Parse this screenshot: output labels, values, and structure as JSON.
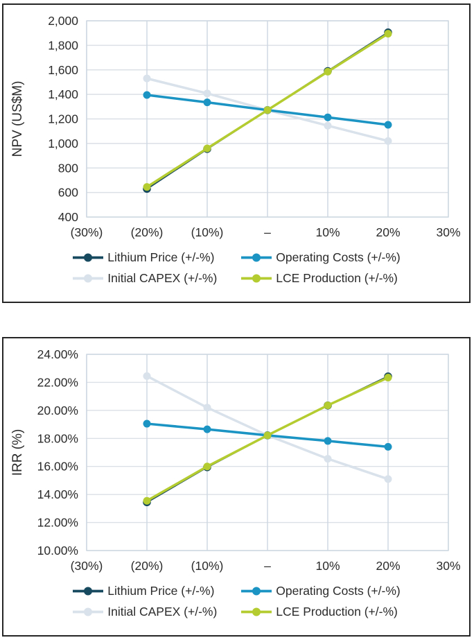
{
  "colors": {
    "lithium": "#17495f",
    "opex": "#1b94c4",
    "capex": "#d9e1ea",
    "lce": "#b5cc31",
    "grid_horizontal": "#dbe0e6",
    "grid_vertical": "#cdd6e1",
    "axis_text": "#2b2b2b",
    "panel_border": "#262626"
  },
  "legend": {
    "items": [
      {
        "label": "Lithium Price (+/-%)",
        "color_key": "lithium",
        "slug": "lithium-price"
      },
      {
        "label": "Operating Costs (+/-%)",
        "color_key": "opex",
        "slug": "operating-costs"
      },
      {
        "label": "Initial CAPEX (+/-%)",
        "color_key": "capex",
        "slug": "initial-capex"
      },
      {
        "label": "LCE Production (+/-%)",
        "color_key": "lce",
        "slug": "lce-production"
      }
    ]
  },
  "chart_data": [
    {
      "type": "line",
      "title": "",
      "xlabel": "",
      "ylabel": "NPV (US$M)",
      "ylim": [
        400,
        2000
      ],
      "grid": true,
      "legend_position": "bottom",
      "yticks": [
        {
          "label": "2,000",
          "value": 2000
        },
        {
          "label": "1,800",
          "value": 1800
        },
        {
          "label": "1,600",
          "value": 1600
        },
        {
          "label": "1,400",
          "value": 1400
        },
        {
          "label": "1,200",
          "value": 1200
        },
        {
          "label": "1,000",
          "value": 1000
        },
        {
          "label": "800",
          "value": 800
        },
        {
          "label": "600",
          "value": 600
        },
        {
          "label": "400",
          "value": 400
        }
      ],
      "xticks": [
        {
          "label": "(30%)",
          "value": -30
        },
        {
          "label": "(20%)",
          "value": -20
        },
        {
          "label": "(10%)",
          "value": -10
        },
        {
          "label": "–",
          "value": 0
        },
        {
          "label": "10%",
          "value": 10
        },
        {
          "label": "20%",
          "value": 20
        },
        {
          "label": "30%",
          "value": 30
        }
      ],
      "x": [
        -20,
        -10,
        0,
        10,
        20
      ],
      "series": [
        {
          "name": "Lithium Price (+/-%)",
          "color_key": "lithium",
          "values": [
            630,
            955,
            1272,
            1590,
            1905
          ]
        },
        {
          "name": "Operating Costs (+/-%)",
          "color_key": "opex",
          "values": [
            1395,
            1335,
            1272,
            1213,
            1152
          ]
        },
        {
          "name": "Initial CAPEX (+/-%)",
          "color_key": "capex",
          "values": [
            1530,
            1408,
            1272,
            1145,
            1020
          ]
        },
        {
          "name": "LCE Production (+/-%)",
          "color_key": "lce",
          "values": [
            645,
            960,
            1272,
            1585,
            1895
          ]
        }
      ]
    },
    {
      "type": "line",
      "title": "",
      "xlabel": "",
      "ylabel": "IRR (%)",
      "ylim": [
        10,
        24
      ],
      "grid": true,
      "legend_position": "bottom",
      "yticks": [
        {
          "label": "24.00%",
          "value": 24
        },
        {
          "label": "22.00%",
          "value": 22
        },
        {
          "label": "20.00%",
          "value": 20
        },
        {
          "label": "18.00%",
          "value": 18
        },
        {
          "label": "16.00%",
          "value": 16
        },
        {
          "label": "14.00%",
          "value": 14
        },
        {
          "label": "12.00%",
          "value": 12
        },
        {
          "label": "10.00%",
          "value": 10
        }
      ],
      "xticks": [
        {
          "label": "(30%)",
          "value": -30
        },
        {
          "label": "(20%)",
          "value": -20
        },
        {
          "label": "(10%)",
          "value": -10
        },
        {
          "label": "–",
          "value": 0
        },
        {
          "label": "10%",
          "value": 10
        },
        {
          "label": "20%",
          "value": 20
        },
        {
          "label": "30%",
          "value": 30
        }
      ],
      "x": [
        -20,
        -10,
        0,
        10,
        20
      ],
      "series": [
        {
          "name": "Lithium Price (+/-%)",
          "color_key": "lithium",
          "values": [
            13.45,
            15.95,
            18.22,
            20.35,
            22.42
          ]
        },
        {
          "name": "Operating Costs (+/-%)",
          "color_key": "opex",
          "values": [
            19.05,
            18.65,
            18.22,
            17.82,
            17.4
          ]
        },
        {
          "name": "Initial CAPEX (+/-%)",
          "color_key": "capex",
          "values": [
            22.45,
            20.2,
            18.22,
            16.55,
            15.1
          ]
        },
        {
          "name": "LCE Production (+/-%)",
          "color_key": "lce",
          "values": [
            13.55,
            16.0,
            18.22,
            20.36,
            22.34
          ]
        }
      ]
    }
  ]
}
